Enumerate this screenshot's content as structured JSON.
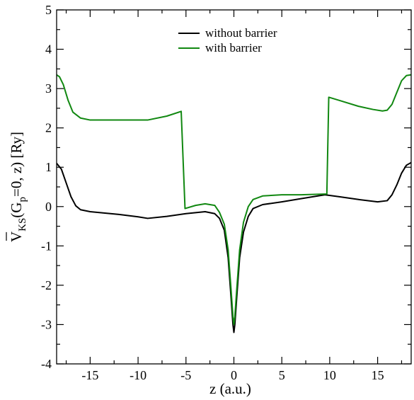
{
  "chart_data": {
    "type": "line",
    "title": "",
    "xlabel": "z (a.u.)",
    "ylabel": "V̄KS(Gp=0, z) [Ry]",
    "ylabel_parts": {
      "base": "V",
      "sub1": "KS",
      "arg_open": "(G",
      "sub2": "p",
      "arg_close": "=0, z) [Ry]"
    },
    "xlim": [
      -18.5,
      18.5
    ],
    "ylim": [
      -4,
      5
    ],
    "xticks": [
      -15,
      -10,
      -5,
      0,
      5,
      10,
      15
    ],
    "xtick_labels": [
      "-15",
      "-10",
      "-5",
      "0",
      "5",
      "10",
      "15"
    ],
    "yticks": [
      -4,
      -3,
      -2,
      -1,
      0,
      1,
      2,
      3,
      4,
      5
    ],
    "ytick_labels": [
      "-4",
      "-3",
      "-2",
      "-1",
      "0",
      "1",
      "2",
      "3",
      "4",
      "5"
    ],
    "grid": false,
    "legend_position": "top-center",
    "series": [
      {
        "name": "without barrier",
        "color": "#000000",
        "points": [
          [
            -18.5,
            1.1
          ],
          [
            -18.0,
            0.95
          ],
          [
            -17.5,
            0.6
          ],
          [
            -17.0,
            0.25
          ],
          [
            -16.5,
            0.02
          ],
          [
            -16.0,
            -0.08
          ],
          [
            -15.0,
            -0.13
          ],
          [
            -12.0,
            -0.2
          ],
          [
            -10.0,
            -0.26
          ],
          [
            -9.0,
            -0.3
          ],
          [
            -7.0,
            -0.25
          ],
          [
            -5.0,
            -0.18
          ],
          [
            -3.0,
            -0.13
          ],
          [
            -2.0,
            -0.18
          ],
          [
            -1.5,
            -0.3
          ],
          [
            -1.0,
            -0.6
          ],
          [
            -0.6,
            -1.3
          ],
          [
            -0.3,
            -2.3
          ],
          [
            -0.1,
            -3.0
          ],
          [
            0.0,
            -3.2
          ],
          [
            0.1,
            -3.0
          ],
          [
            0.3,
            -2.3
          ],
          [
            0.6,
            -1.3
          ],
          [
            1.0,
            -0.65
          ],
          [
            1.5,
            -0.25
          ],
          [
            2.0,
            -0.05
          ],
          [
            3.0,
            0.05
          ],
          [
            5.0,
            0.12
          ],
          [
            7.0,
            0.2
          ],
          [
            9.5,
            0.3
          ],
          [
            11.0,
            0.25
          ],
          [
            13.0,
            0.18
          ],
          [
            15.0,
            0.12
          ],
          [
            16.0,
            0.15
          ],
          [
            16.5,
            0.3
          ],
          [
            17.0,
            0.55
          ],
          [
            17.5,
            0.85
          ],
          [
            18.0,
            1.05
          ],
          [
            18.5,
            1.12
          ]
        ]
      },
      {
        "name": "with barrier",
        "color": "#118811",
        "points": [
          [
            -18.5,
            3.35
          ],
          [
            -18.2,
            3.3
          ],
          [
            -17.8,
            3.1
          ],
          [
            -17.3,
            2.7
          ],
          [
            -16.8,
            2.4
          ],
          [
            -16.0,
            2.25
          ],
          [
            -15.0,
            2.2
          ],
          [
            -12.0,
            2.2
          ],
          [
            -9.0,
            2.2
          ],
          [
            -7.0,
            2.3
          ],
          [
            -5.5,
            2.42
          ],
          [
            -5.1,
            -0.05
          ],
          [
            -4.0,
            0.03
          ],
          [
            -3.0,
            0.07
          ],
          [
            -2.0,
            0.03
          ],
          [
            -1.5,
            -0.15
          ],
          [
            -1.0,
            -0.45
          ],
          [
            -0.6,
            -1.1
          ],
          [
            -0.3,
            -2.1
          ],
          [
            -0.1,
            -2.8
          ],
          [
            0.0,
            -3.0
          ],
          [
            0.1,
            -2.8
          ],
          [
            0.3,
            -2.1
          ],
          [
            0.6,
            -1.1
          ],
          [
            1.0,
            -0.4
          ],
          [
            1.5,
            0.0
          ],
          [
            2.0,
            0.18
          ],
          [
            3.0,
            0.27
          ],
          [
            5.0,
            0.3
          ],
          [
            7.0,
            0.3
          ],
          [
            9.7,
            0.32
          ],
          [
            9.9,
            2.78
          ],
          [
            11.0,
            2.7
          ],
          [
            13.0,
            2.55
          ],
          [
            14.5,
            2.47
          ],
          [
            15.5,
            2.43
          ],
          [
            16.0,
            2.45
          ],
          [
            16.5,
            2.6
          ],
          [
            17.0,
            2.9
          ],
          [
            17.5,
            3.2
          ],
          [
            18.0,
            3.33
          ],
          [
            18.5,
            3.35
          ]
        ]
      }
    ]
  }
}
